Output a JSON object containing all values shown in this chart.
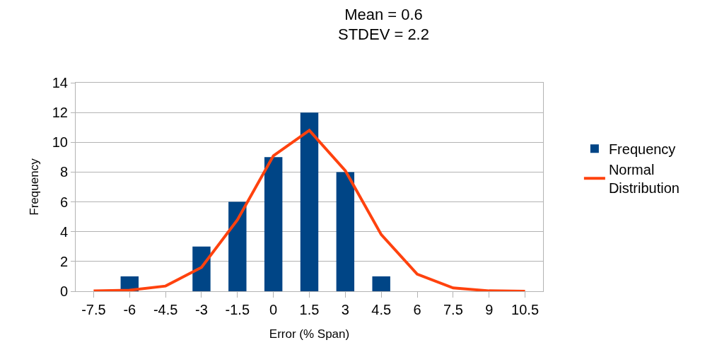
{
  "chart_data": {
    "type": "bar",
    "title": "Mean = 0.6\nSTDEV = 2.2",
    "xlabel": "Error (% Span)",
    "ylabel": "Frequency",
    "categories": [
      "-7.5",
      "-6",
      "-4.5",
      "-3",
      "-1.5",
      "0",
      "1.5",
      "3",
      "4.5",
      "6",
      "7.5",
      "9",
      "10.5"
    ],
    "series": [
      {
        "name": "Frequency",
        "color": "#004586",
        "values": [
          null,
          1,
          null,
          3,
          6,
          9,
          12,
          8,
          1,
          null,
          null,
          null,
          null
        ]
      },
      {
        "name": "Normal Distribution",
        "type": "line",
        "color": "#ff420e",
        "marker": "none",
        "line_style": "solid",
        "values": [
          0.02,
          0.07,
          0.35,
          1.6,
          4.8,
          9.1,
          10.8,
          8.1,
          3.8,
          1.15,
          0.22,
          0.03,
          0.0
        ]
      }
    ],
    "ylim": [
      0,
      14
    ],
    "yticks": [
      0,
      2,
      4,
      6,
      8,
      10,
      12,
      14
    ],
    "grid": "y",
    "legend": "right"
  }
}
